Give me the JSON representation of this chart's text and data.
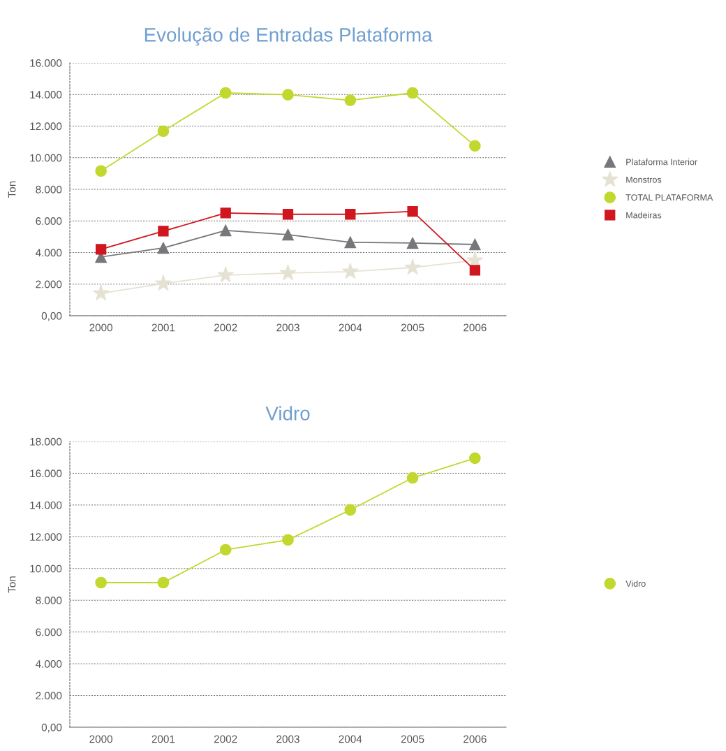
{
  "chart_data": [
    {
      "type": "line",
      "title": "Evolução de Entradas Plataforma",
      "ylabel": "Ton",
      "categories": [
        "2000",
        "2001",
        "2002",
        "2003",
        "2004",
        "2005",
        "2006"
      ],
      "series": [
        {
          "name": "Plataforma Interior",
          "color": "#76777b",
          "marker": "triangle",
          "values": [
            3720,
            4290,
            5400,
            5130,
            4650,
            4600,
            4510
          ]
        },
        {
          "name": "Monstros",
          "color": "#e6e2d3",
          "marker": "star",
          "values": [
            1420,
            2040,
            2570,
            2700,
            2790,
            3050,
            3500
          ]
        },
        {
          "name": "TOTAL PLATAFORMA",
          "color": "#c2d82e",
          "marker": "circle",
          "values": [
            9160,
            11680,
            14100,
            13980,
            13630,
            14100,
            10750
          ]
        },
        {
          "name": "Madeiras",
          "color": "#d0161e",
          "marker": "square",
          "values": [
            4200,
            5350,
            6500,
            6420,
            6420,
            6600,
            2880
          ]
        }
      ],
      "ylim": [
        0,
        16000
      ],
      "yticks": [
        {
          "value": 0,
          "label": "0,00"
        },
        {
          "value": 2000,
          "label": "2.000"
        },
        {
          "value": 4000,
          "label": "4.000"
        },
        {
          "value": 6000,
          "label": "6.000"
        },
        {
          "value": 8000,
          "label": "8.000"
        },
        {
          "value": 10000,
          "label": "10.000"
        },
        {
          "value": 12000,
          "label": "12.000"
        },
        {
          "value": 14000,
          "label": "14.000"
        },
        {
          "value": 16000,
          "label": "16.000"
        }
      ],
      "grid": "y",
      "legend": "right"
    },
    {
      "type": "line",
      "title": "Vidro",
      "ylabel": "Ton",
      "categories": [
        "2000",
        "2001",
        "2002",
        "2003",
        "2004",
        "2005",
        "2006"
      ],
      "series": [
        {
          "name": "Vidro",
          "color": "#c2d82e",
          "marker": "circle",
          "values": [
            9110,
            9110,
            11180,
            11800,
            13690,
            15710,
            16950
          ]
        }
      ],
      "ylim": [
        0,
        18000
      ],
      "yticks": [
        {
          "value": 0,
          "label": "0,00"
        },
        {
          "value": 2000,
          "label": "2.000"
        },
        {
          "value": 4000,
          "label": "4.000"
        },
        {
          "value": 6000,
          "label": "6.000"
        },
        {
          "value": 8000,
          "label": "8.000"
        },
        {
          "value": 10000,
          "label": "10.000"
        },
        {
          "value": 12000,
          "label": "12.000"
        },
        {
          "value": 14000,
          "label": "14.000"
        },
        {
          "value": 16000,
          "label": "16.000"
        },
        {
          "value": 18000,
          "label": "18.000"
        }
      ],
      "grid": "y",
      "legend": "right"
    }
  ]
}
